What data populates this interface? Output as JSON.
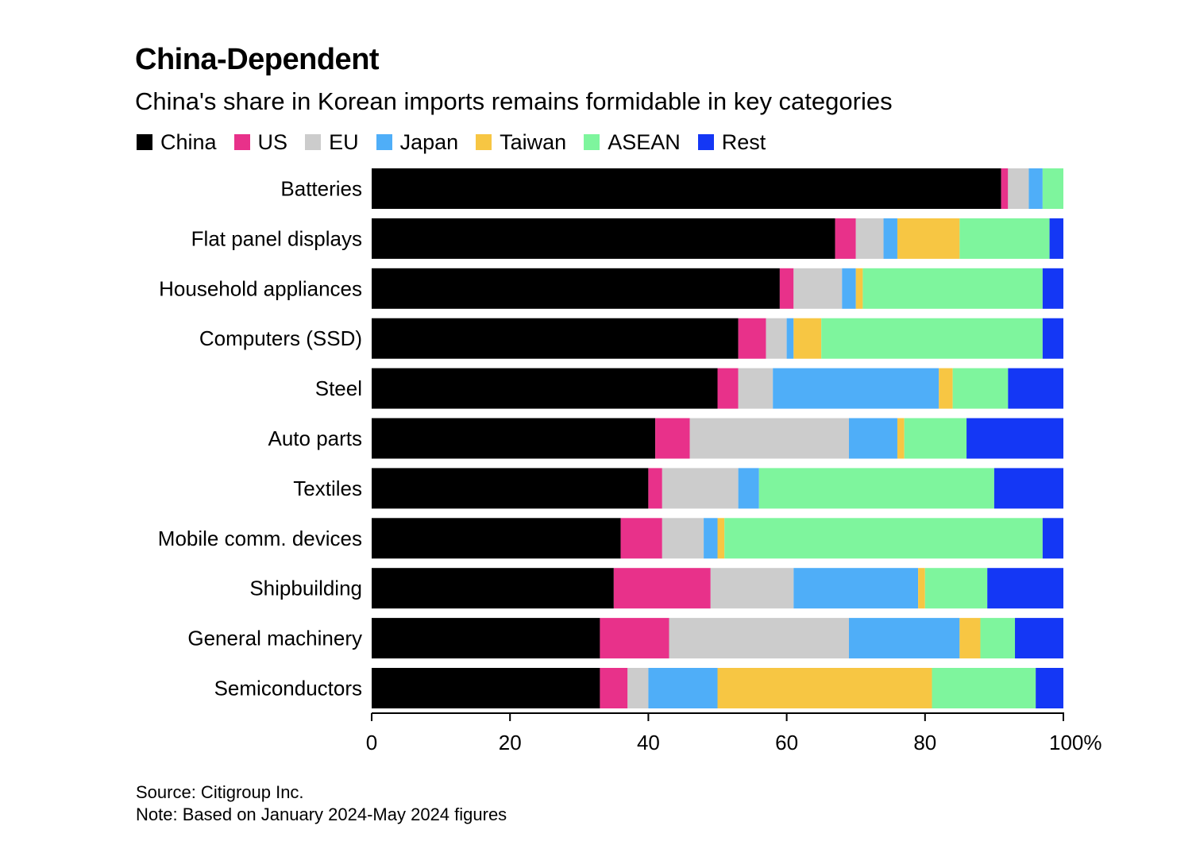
{
  "header": {
    "title": "China-Dependent",
    "subtitle": "China's share in Korean imports remains formidable in key categories"
  },
  "footer": {
    "source": "Source: Citigroup Inc.",
    "note": "Note: Based on January 2024-May 2024 figures"
  },
  "chart_data": {
    "type": "bar",
    "orientation": "horizontal",
    "stacked": true,
    "title": "China-Dependent",
    "subtitle": "China's share in Korean imports remains formidable in key categories",
    "xlabel": "",
    "ylabel": "",
    "xlim": [
      0,
      100
    ],
    "x_ticks": [
      "0",
      "20",
      "40",
      "60",
      "80",
      "100%"
    ],
    "x_tick_values": [
      0,
      20,
      40,
      60,
      80,
      100
    ],
    "grid": false,
    "legend_position": "top-left",
    "categories": [
      "Batteries",
      "Flat panel displays",
      "Household appliances",
      "Computers (SSD)",
      "Steel",
      "Auto parts",
      "Textiles",
      "Mobile comm. devices",
      "Shipbuilding",
      "General machinery",
      "Semiconductors"
    ],
    "series": [
      {
        "name": "China",
        "color": "#000000",
        "values": [
          91,
          67,
          59,
          53,
          50,
          41,
          40,
          36,
          35,
          33,
          33
        ]
      },
      {
        "name": "US",
        "color": "#e8318a",
        "values": [
          1,
          3,
          2,
          4,
          3,
          5,
          2,
          6,
          14,
          10,
          4
        ]
      },
      {
        "name": "EU",
        "color": "#cccccc",
        "values": [
          3,
          4,
          7,
          3,
          5,
          23,
          11,
          6,
          12,
          26,
          3
        ]
      },
      {
        "name": "Japan",
        "color": "#4faef8",
        "values": [
          2,
          2,
          2,
          1,
          24,
          7,
          3,
          2,
          18,
          16,
          10
        ]
      },
      {
        "name": "Taiwan",
        "color": "#f7c643",
        "values": [
          0,
          9,
          1,
          4,
          2,
          1,
          0,
          1,
          1,
          3,
          31
        ]
      },
      {
        "name": "ASEAN",
        "color": "#7ef59d",
        "values": [
          3,
          13,
          26,
          32,
          8,
          9,
          34,
          46,
          9,
          5,
          15
        ]
      },
      {
        "name": "Rest",
        "color": "#1437f5",
        "values": [
          0,
          2,
          3,
          3,
          8,
          14,
          10,
          3,
          11,
          7,
          4
        ]
      }
    ]
  }
}
